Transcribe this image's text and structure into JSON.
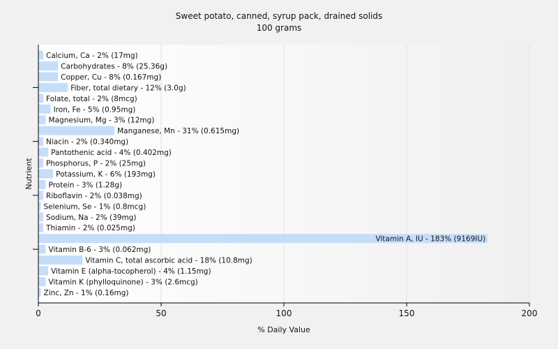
{
  "chart_data": {
    "type": "bar",
    "orientation": "horizontal",
    "title": "Sweet potato, canned, syrup pack, drained solids",
    "subtitle": "100 grams",
    "xlabel": "% Daily Value",
    "ylabel": "Nutrient",
    "xlim": [
      0,
      200
    ],
    "xticks": [
      0,
      50,
      100,
      150,
      200
    ],
    "grid": true,
    "bar_color": "#c6ddfa",
    "categories": [
      "Calcium, Ca",
      "Carbohydrates",
      "Copper, Cu",
      "Fiber, total dietary",
      "Folate, total",
      "Iron, Fe",
      "Magnesium, Mg",
      "Manganese, Mn",
      "Niacin",
      "Pantothenic acid",
      "Phosphorus, P",
      "Potassium, K",
      "Protein",
      "Riboflavin",
      "Selenium, Se",
      "Sodium, Na",
      "Thiamin",
      "Vitamin A, IU",
      "Vitamin B-6",
      "Vitamin C, total ascorbic acid",
      "Vitamin E (alpha-tocopherol)",
      "Vitamin K (phylloquinone)",
      "Zinc, Zn"
    ],
    "values": [
      2,
      8,
      8,
      12,
      2,
      5,
      3,
      31,
      2,
      4,
      2,
      6,
      3,
      2,
      1,
      2,
      2,
      183,
      3,
      18,
      4,
      3,
      1
    ],
    "labels": [
      "Calcium, Ca - 2% (17mg)",
      "Carbohydrates - 8% (25.36g)",
      "Copper, Cu - 8% (0.167mg)",
      "Fiber, total dietary - 12% (3.0g)",
      "Folate, total - 2% (8mcg)",
      "Iron, Fe - 5% (0.95mg)",
      "Magnesium, Mg - 3% (12mg)",
      "Manganese, Mn - 31% (0.615mg)",
      "Niacin - 2% (0.340mg)",
      "Pantothenic acid - 4% (0.402mg)",
      "Phosphorus, P - 2% (25mg)",
      "Potassium, K - 6% (193mg)",
      "Protein - 3% (1.28g)",
      "Riboflavin - 2% (0.038mg)",
      "Selenium, Se - 1% (0.8mcg)",
      "Sodium, Na - 2% (39mg)",
      "Thiamin - 2% (0.025mg)",
      "Vitamin A, IU - 183% (9169IU)",
      "Vitamin B-6 - 3% (0.062mg)",
      "Vitamin C, total ascorbic acid - 18% (10.8mg)",
      "Vitamin E (alpha-tocopherol) - 4% (1.15mg)",
      "Vitamin K (phylloquinone) - 3% (2.6mcg)",
      "Zinc, Zn - 1% (0.16mg)"
    ]
  }
}
